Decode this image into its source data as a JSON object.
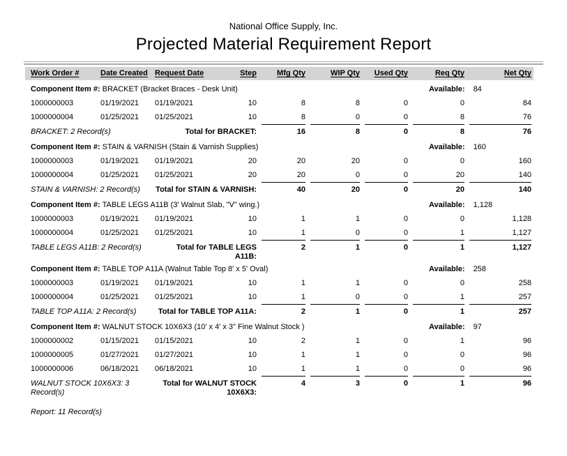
{
  "header": {
    "company": "National Office Supply, Inc.",
    "title": "Projected Material Requirement Report"
  },
  "colors": {
    "header_band": "#d4d4d4",
    "rule_gray": "#a9a9a9",
    "text": "#000000"
  },
  "table": {
    "columns": [
      "Work Order #",
      "Date Created",
      "Request Date",
      "Step",
      "Mfg Qty",
      "WIP Qty",
      "Used Qty",
      "Req Qty",
      "Net Qty"
    ],
    "component_label": "Component Item #:",
    "available_label": "Available:",
    "sections": [
      {
        "component_name": "BRACKET (Bracket Braces - Desk Unit)",
        "available": "84",
        "rows": [
          [
            "1000000003",
            "01/19/2021",
            "01/19/2021",
            "10",
            "8",
            "8",
            "0",
            "0",
            "84"
          ],
          [
            "1000000004",
            "01/25/2021",
            "01/25/2021",
            "10",
            "8",
            "0",
            "0",
            "8",
            "76"
          ]
        ],
        "record_count": "BRACKET: 2 Record(s)",
        "total_label": "Total for BRACKET:",
        "totals": [
          "16",
          "8",
          "0",
          "8",
          "76"
        ]
      },
      {
        "component_name": "STAIN & VARNISH (Stain & Varnish Supplies)",
        "available": "160",
        "rows": [
          [
            "1000000003",
            "01/19/2021",
            "01/19/2021",
            "20",
            "20",
            "20",
            "0",
            "0",
            "160"
          ],
          [
            "1000000004",
            "01/25/2021",
            "01/25/2021",
            "20",
            "20",
            "0",
            "0",
            "20",
            "140"
          ]
        ],
        "record_count": "STAIN & VARNISH: 2 Record(s)",
        "total_label": "Total for STAIN & VARNISH:",
        "totals": [
          "40",
          "20",
          "0",
          "20",
          "140"
        ]
      },
      {
        "component_name": "TABLE LEGS A11B (3' Walnut Slab, \"V\" wing.)",
        "available": "1,128",
        "rows": [
          [
            "1000000003",
            "01/19/2021",
            "01/19/2021",
            "10",
            "1",
            "1",
            "0",
            "0",
            "1,128"
          ],
          [
            "1000000004",
            "01/25/2021",
            "01/25/2021",
            "10",
            "1",
            "0",
            "0",
            "1",
            "1,127"
          ]
        ],
        "record_count": "TABLE LEGS A11B: 2 Record(s)",
        "total_label": "Total for TABLE LEGS A11B:",
        "totals": [
          "2",
          "1",
          "0",
          "1",
          "1,127"
        ]
      },
      {
        "component_name": "TABLE TOP A11A (Walnut Table Top 8' x 5' Oval)",
        "available": "258",
        "rows": [
          [
            "1000000003",
            "01/19/2021",
            "01/19/2021",
            "10",
            "1",
            "1",
            "0",
            "0",
            "258"
          ],
          [
            "1000000004",
            "01/25/2021",
            "01/25/2021",
            "10",
            "1",
            "0",
            "0",
            "1",
            "257"
          ]
        ],
        "record_count": "TABLE TOP A11A: 2 Record(s)",
        "total_label": "Total for TABLE TOP A11A:",
        "totals": [
          "2",
          "1",
          "0",
          "1",
          "257"
        ]
      },
      {
        "component_name": "WALNUT STOCK 10X6X3 (10' x 4' x 3\" Fine Walnut Stock )",
        "available": "97",
        "rows": [
          [
            "1000000002",
            "01/15/2021",
            "01/15/2021",
            "10",
            "2",
            "1",
            "0",
            "1",
            "96"
          ],
          [
            "1000000005",
            "01/27/2021",
            "01/27/2021",
            "10",
            "1",
            "1",
            "0",
            "0",
            "96"
          ],
          [
            "1000000006",
            "06/18/2021",
            "06/18/2021",
            "10",
            "1",
            "1",
            "0",
            "0",
            "96"
          ]
        ],
        "record_count": "WALNUT STOCK 10X6X3: 3 Record(s)",
        "total_label": "Total for WALNUT STOCK 10X6X3:",
        "totals": [
          "4",
          "3",
          "0",
          "1",
          "96"
        ]
      }
    ]
  },
  "footer": {
    "report_count": "Report: 11 Record(s)"
  }
}
